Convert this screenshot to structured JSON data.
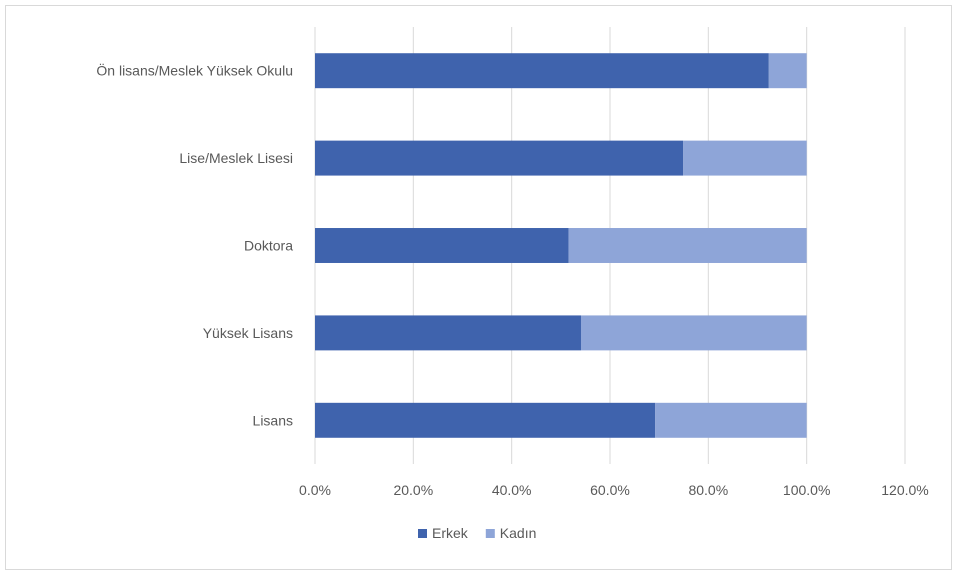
{
  "chart_data": {
    "type": "bar",
    "orientation": "horizontal",
    "stacked": true,
    "categories": [
      "Lisans",
      "Yüksek Lisans",
      "Doktora",
      "Lise/Meslek Lisesi",
      "Ön lisans/Meslek Yüksek Okulu"
    ],
    "series": [
      {
        "name": "Erkek",
        "values": [
          69.2,
          54.1,
          51.6,
          74.9,
          92.3
        ],
        "color": "#3f63ad"
      },
      {
        "name": "Kadın",
        "values": [
          30.8,
          45.9,
          48.4,
          25.1,
          7.7
        ],
        "color": "#8ea5d8"
      }
    ],
    "xlim": [
      0,
      120
    ],
    "xticks": [
      "0.0%",
      "20.0%",
      "40.0%",
      "60.0%",
      "80.0%",
      "100.0%",
      "120.0%"
    ],
    "grid": true,
    "legend_position": "bottom",
    "title": "",
    "xlabel": "",
    "ylabel": ""
  }
}
